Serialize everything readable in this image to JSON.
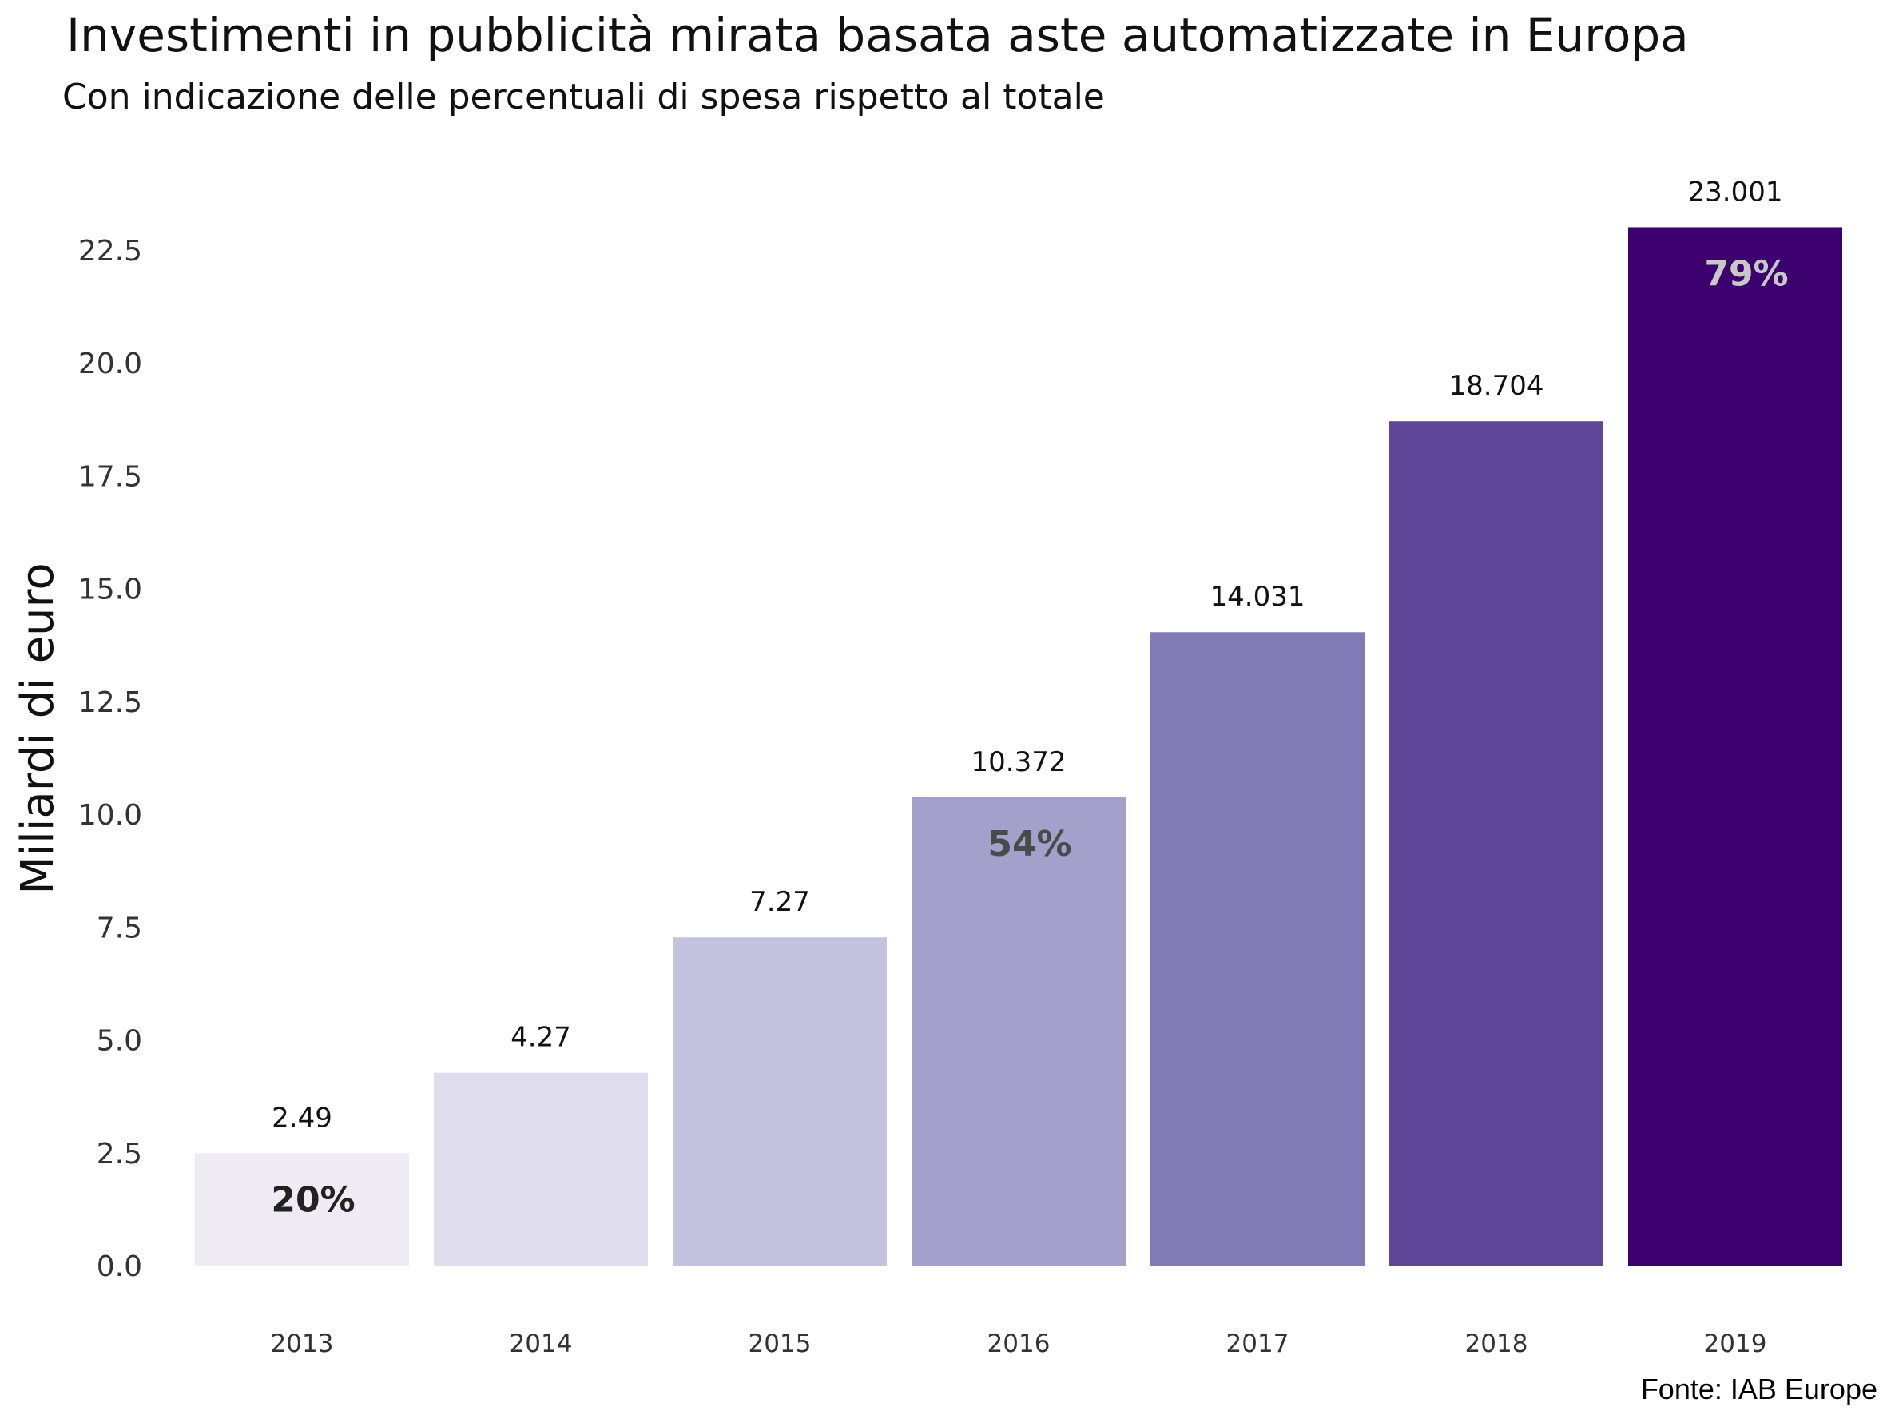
{
  "chart_data": {
    "type": "bar",
    "title": "Investimenti in pubblicità mirata basata aste automatizzate in Europa",
    "subtitle": "Con indicazione delle percentuali di spesa rispetto al totale",
    "xlabel": "",
    "ylabel": "Miliardi di euro",
    "ylim": [
      0,
      23.5
    ],
    "yticks": [
      "0.0",
      "2.5",
      "5.0",
      "7.5",
      "10.0",
      "12.5",
      "15.0",
      "17.5",
      "20.0",
      "22.5"
    ],
    "ytick_values": [
      0,
      2.5,
      5,
      7.5,
      10,
      12.5,
      15,
      17.5,
      20,
      22.5
    ],
    "categories": [
      "2013",
      "2014",
      "2015",
      "2016",
      "2017",
      "2018",
      "2019"
    ],
    "values": [
      2.49,
      4.27,
      7.27,
      10.372,
      14.031,
      18.704,
      23.001
    ],
    "value_labels": [
      "2.49",
      "4.27",
      "7.27",
      "10.372",
      "14.031",
      "18.704",
      "23.001"
    ],
    "bar_colors": [
      "#efebf5",
      "#dfdced",
      "#c3c3df",
      "#a4a0cb",
      "#827cb6",
      "#5e4597",
      "#3c006f"
    ],
    "percent_annotations": [
      {
        "category": "2013",
        "text": "20%",
        "color": "#222222"
      },
      {
        "category": "2016",
        "text": "54%",
        "color": "#4a4a4a"
      },
      {
        "category": "2019",
        "text": "79%",
        "color": "#c8c8c8"
      }
    ],
    "grid": false,
    "legend": "none",
    "source": "Fonte: IAB Europe"
  }
}
